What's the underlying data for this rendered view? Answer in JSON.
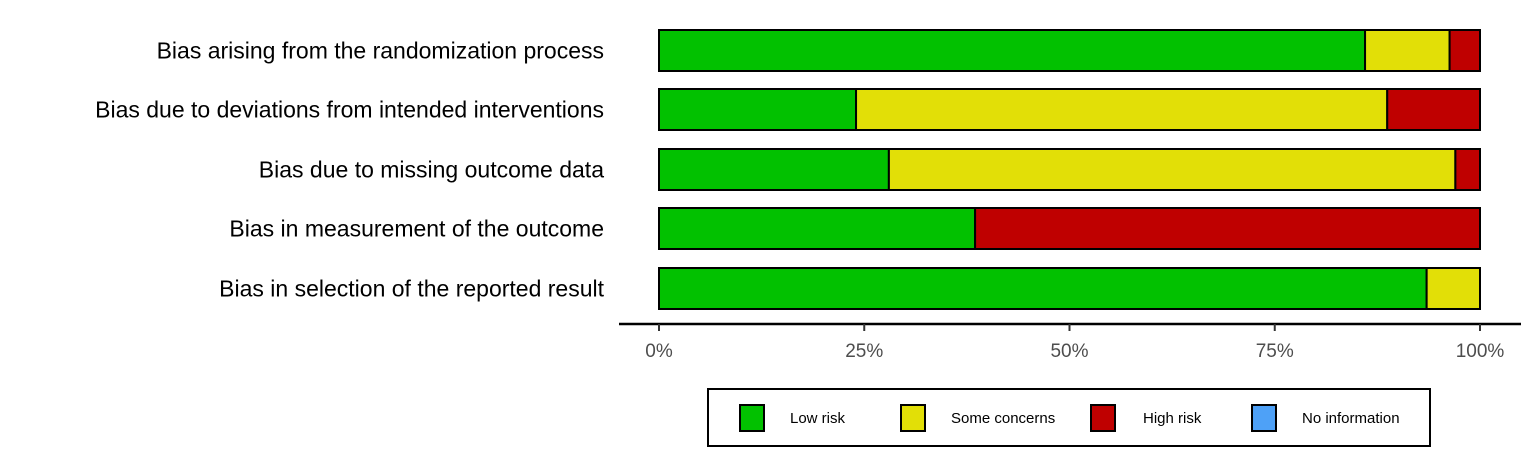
{
  "chart_data": {
    "type": "bar",
    "orientation": "horizontal",
    "stacked": true,
    "normalized_percent": true,
    "categories": [
      "Bias arising from the randomization process",
      "Bias due to deviations from intended interventions",
      "Bias due to missing outcome data",
      "Bias in measurement of the outcome",
      "Bias in selection of the reported result"
    ],
    "series": [
      {
        "name": "Low risk",
        "color": "#02C100",
        "values": [
          86,
          24,
          28,
          38.5,
          93.5
        ]
      },
      {
        "name": "Some concerns",
        "color": "#E2DF07",
        "values": [
          10.3,
          64.7,
          69,
          0,
          6.5
        ]
      },
      {
        "name": "High risk",
        "color": "#BF0000",
        "values": [
          3.7,
          11.3,
          3,
          61.5,
          0
        ]
      },
      {
        "name": "No information",
        "color": "#4EA1F7",
        "values": [
          0,
          0,
          0,
          0,
          0
        ]
      }
    ],
    "x_ticks": [
      "0%",
      "25%",
      "50%",
      "75%",
      "100%"
    ],
    "xlim": [
      0,
      100
    ],
    "title": "",
    "xlabel": "",
    "ylabel": "",
    "grid": false,
    "legend_position": "bottom"
  }
}
